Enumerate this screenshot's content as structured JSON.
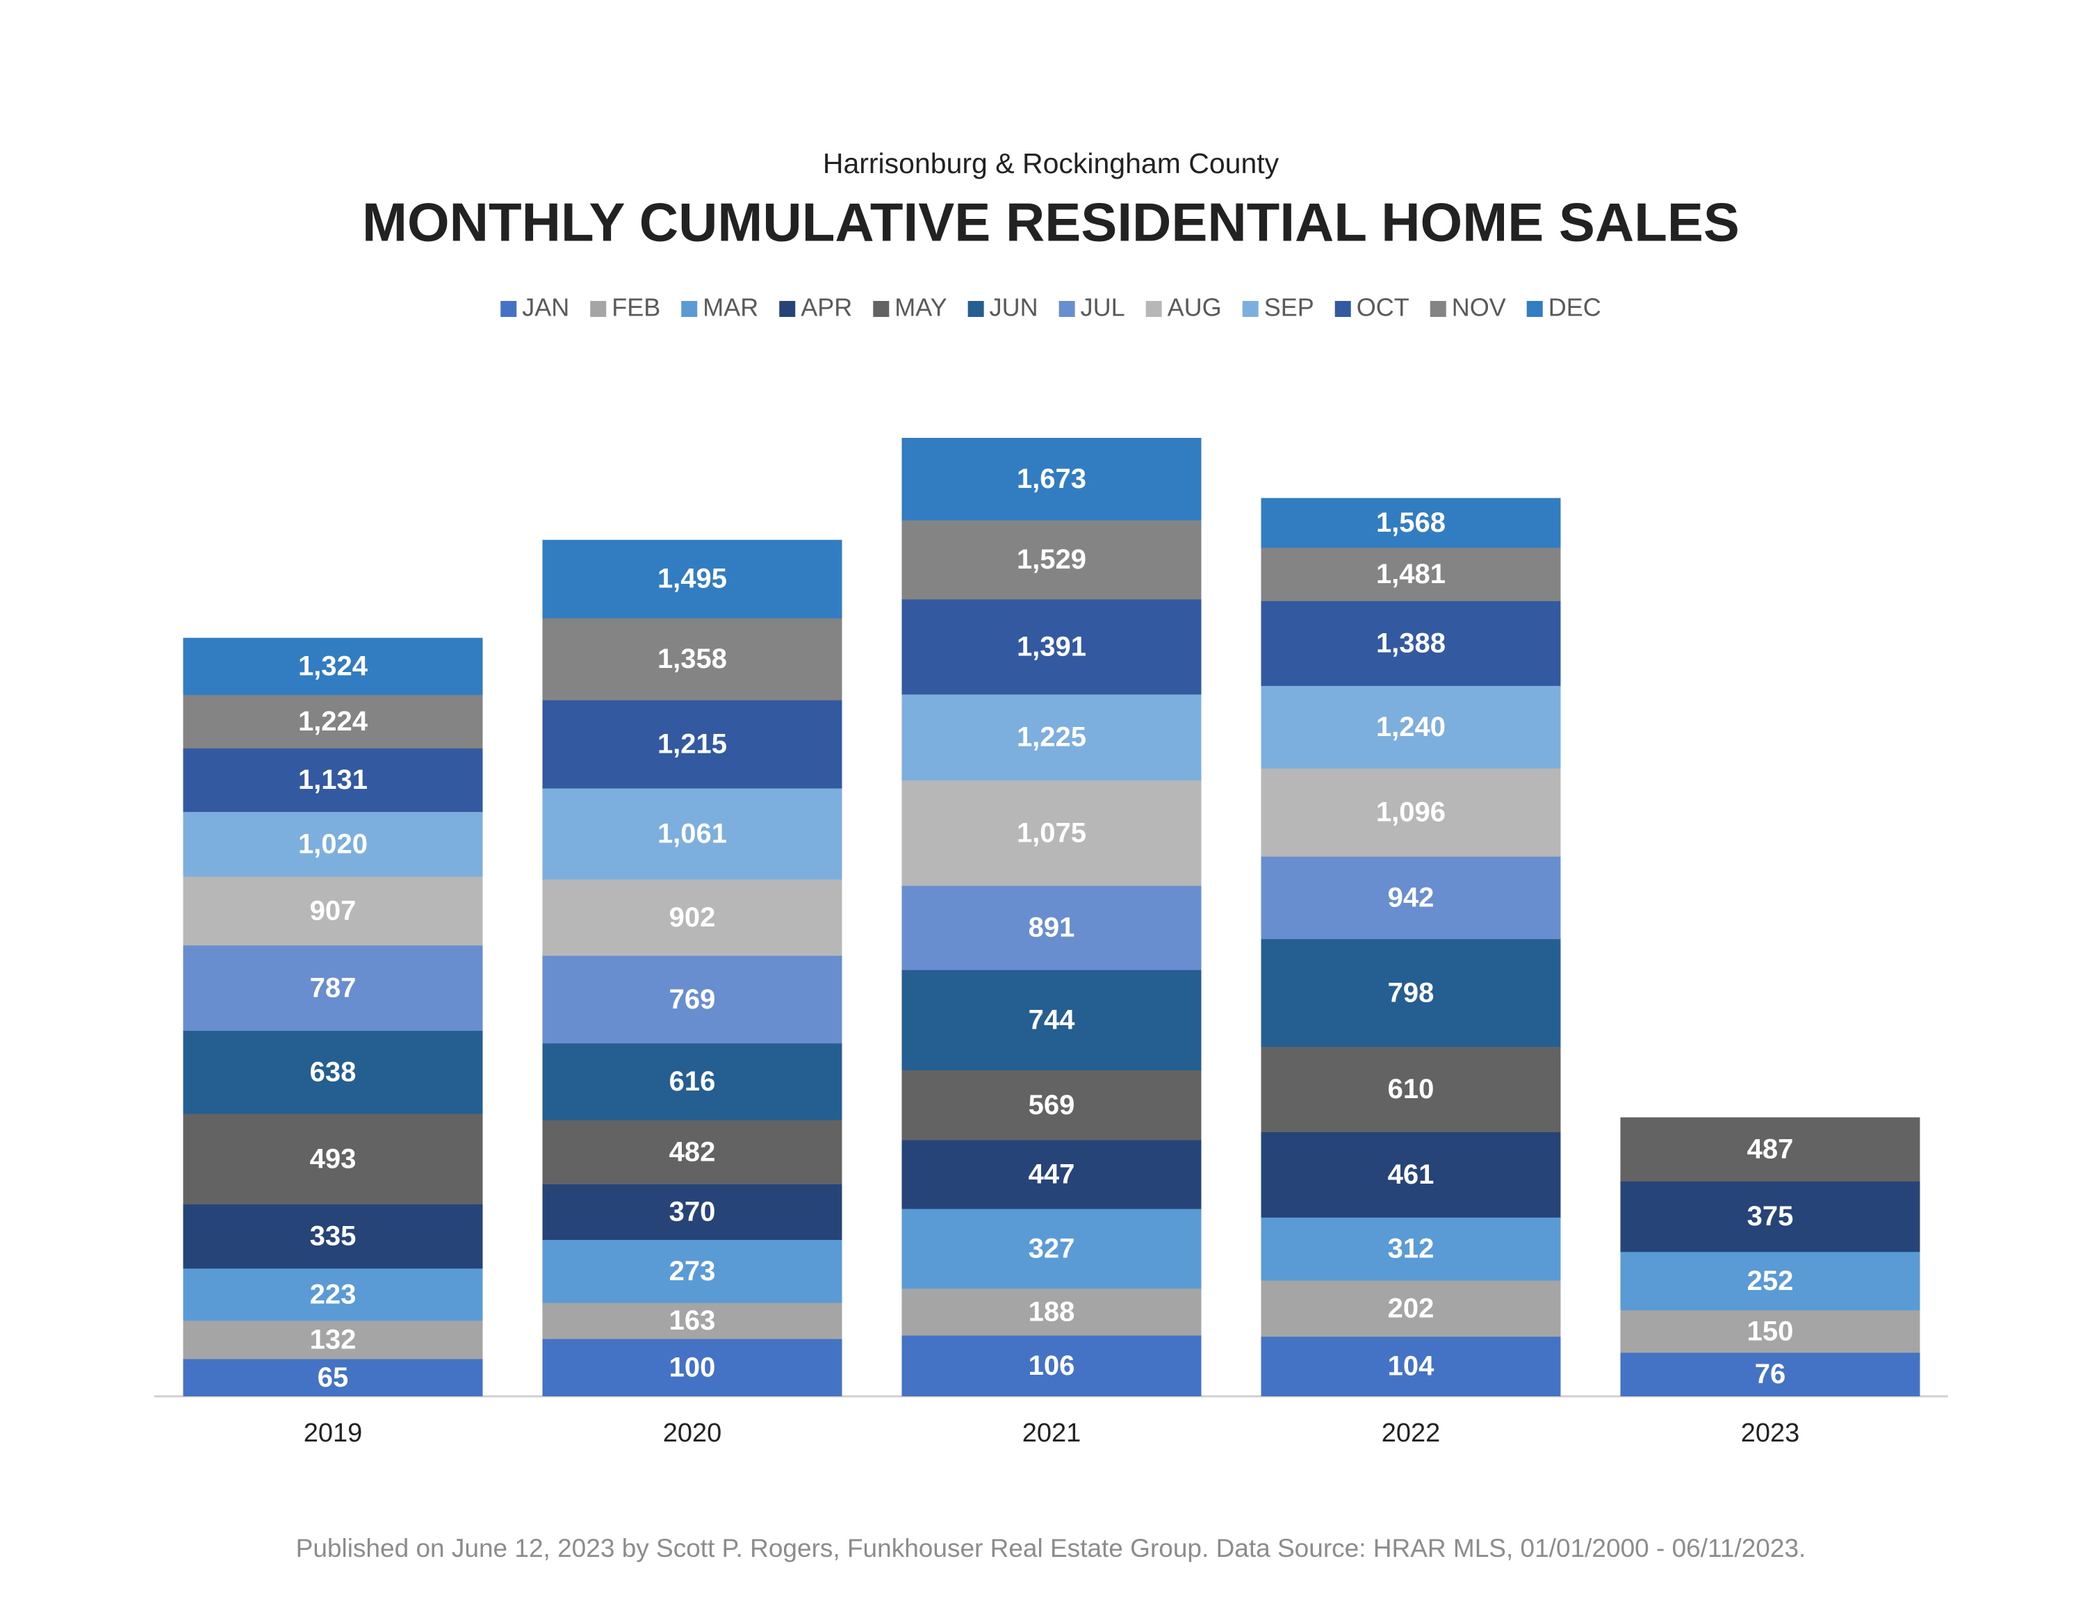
{
  "chart_data": {
    "type": "bar",
    "subtitle": "Harrisonburg & Rockingham County",
    "title": "MONTHLY CUMULATIVE RESIDENTIAL HOME SALES",
    "footer": "Published on June 12, 2023 by Scott P. Rogers, Funkhouser Real Estate Group. Data Source: HRAR MLS, 01/01/2000 - 06/11/2023.",
    "legend": "top",
    "categories": [
      "2019",
      "2020",
      "2021",
      "2022",
      "2023"
    ],
    "series": [
      {
        "name": "JAN",
        "color": "#4472c4",
        "values": [
          65,
          100,
          106,
          104,
          76
        ],
        "value_labels": [
          "65",
          "100",
          "106",
          "104",
          "76"
        ]
      },
      {
        "name": "FEB",
        "color": "#a5a5a5",
        "values": [
          132,
          163,
          188,
          202,
          150
        ],
        "value_labels": [
          "132",
          "163",
          "188",
          "202",
          "150"
        ]
      },
      {
        "name": "MAR",
        "color": "#5b9bd5",
        "values": [
          223,
          273,
          327,
          312,
          252
        ],
        "value_labels": [
          "223",
          "273",
          "327",
          "312",
          "252"
        ]
      },
      {
        "name": "APR",
        "color": "#264478",
        "values": [
          335,
          370,
          447,
          461,
          375
        ],
        "value_labels": [
          "335",
          "370",
          "447",
          "461",
          "375"
        ]
      },
      {
        "name": "MAY",
        "color": "#636363",
        "values": [
          493,
          482,
          569,
          610,
          487
        ],
        "value_labels": [
          "493",
          "482",
          "569",
          "610",
          "487"
        ]
      },
      {
        "name": "JUN",
        "color": "#255e91",
        "values": [
          638,
          616,
          744,
          798,
          null
        ],
        "value_labels": [
          "638",
          "616",
          "744",
          "798",
          null
        ]
      },
      {
        "name": "JUL",
        "color": "#698ed0",
        "values": [
          787,
          769,
          891,
          942,
          null
        ],
        "value_labels": [
          "787",
          "769",
          "891",
          "942",
          null
        ]
      },
      {
        "name": "AUG",
        "color": "#b7b7b7",
        "values": [
          907,
          902,
          1075,
          1096,
          null
        ],
        "value_labels": [
          "907",
          "902",
          "1,075",
          "1,096",
          null
        ]
      },
      {
        "name": "SEP",
        "color": "#7cafdd",
        "values": [
          1020,
          1061,
          1225,
          1240,
          null
        ],
        "value_labels": [
          "1,020",
          "1,061",
          "1,225",
          "1,240",
          null
        ]
      },
      {
        "name": "OCT",
        "color": "#335aa1",
        "values": [
          1131,
          1215,
          1391,
          1388,
          null
        ],
        "value_labels": [
          "1,131",
          "1,215",
          "1,391",
          "1,388",
          null
        ]
      },
      {
        "name": "NOV",
        "color": "#848484",
        "values": [
          1224,
          1358,
          1529,
          1481,
          null
        ],
        "value_labels": [
          "1,224",
          "1,358",
          "1,529",
          "1,481",
          null
        ]
      },
      {
        "name": "DEC",
        "color": "#327dc2",
        "values": [
          1324,
          1495,
          1673,
          1568,
          null
        ],
        "value_labels": [
          "1,324",
          "1,495",
          "1,673",
          "1,568",
          null
        ]
      }
    ]
  }
}
